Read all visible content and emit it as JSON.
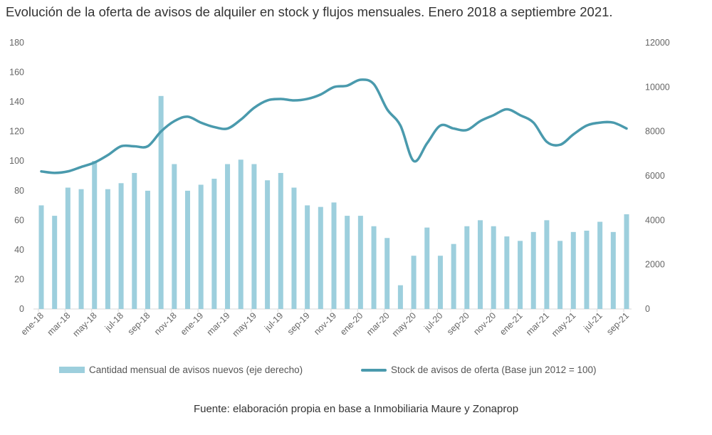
{
  "title": "Evolución de la oferta de avisos de alquiler en stock y flujos mensuales. Enero 2018 a septiembre 2021.",
  "source": "Fuente: elaboración propia en base a Inmobiliaria Maure y Zonaprop",
  "colors": {
    "bars": "#9dcfdd",
    "line": "#4a9aad"
  },
  "chart_data": {
    "type": "bar+line",
    "title": "Evolución de la oferta de avisos de alquiler en stock y flujos mensuales. Enero 2018 a septiembre 2021.",
    "x": [
      "ene-18",
      "feb-18",
      "mar-18",
      "abr-18",
      "may-18",
      "jun-18",
      "jul-18",
      "ago-18",
      "sep-18",
      "oct-18",
      "nov-18",
      "dic-18",
      "ene-19",
      "feb-19",
      "mar-19",
      "abr-19",
      "may-19",
      "jun-19",
      "jul-19",
      "ago-19",
      "sep-19",
      "oct-19",
      "nov-19",
      "dic-19",
      "ene-20",
      "feb-20",
      "mar-20",
      "abr-20",
      "may-20",
      "jun-20",
      "jul-20",
      "ago-20",
      "sep-20",
      "oct-20",
      "nov-20",
      "dic-20",
      "ene-21",
      "feb-21",
      "mar-21",
      "abr-21",
      "may-21",
      "jun-21",
      "jul-21",
      "ago-21",
      "sep-21"
    ],
    "x_tick_labels": [
      "ene-18",
      "mar-18",
      "may-18",
      "jul-18",
      "sep-18",
      "nov-18",
      "ene-19",
      "mar-19",
      "may-19",
      "jul-19",
      "sep-19",
      "nov-19",
      "ene-20",
      "mar-20",
      "may-20",
      "jul-20",
      "sep-20",
      "nov-20",
      "ene-21",
      "mar-21",
      "may-21",
      "jul-21",
      "sep-21"
    ],
    "left_axis": {
      "range": [
        0,
        180
      ],
      "ticks": [
        "0",
        "20",
        "40",
        "60",
        "80",
        "100",
        "120",
        "140",
        "160",
        "180"
      ]
    },
    "right_axis": {
      "range": [
        0,
        12000
      ],
      "ticks": [
        "0",
        "2000",
        "4000",
        "6000",
        "8000",
        "10000",
        "12000"
      ]
    },
    "series": [
      {
        "name": "Cantidad mensual de avisos nuevos (eje derecho)",
        "type": "bar",
        "axis": "right",
        "values": [
          4670,
          4200,
          5470,
          5400,
          6670,
          5400,
          5670,
          6130,
          5330,
          9600,
          6530,
          5330,
          5600,
          5870,
          6530,
          6730,
          6530,
          5800,
          6130,
          5470,
          4670,
          4600,
          4800,
          4200,
          4200,
          3730,
          3200,
          1070,
          2400,
          3670,
          2400,
          2930,
          3730,
          4000,
          3730,
          3270,
          3070,
          3470,
          4000,
          3070,
          3470,
          3530,
          3930,
          3470,
          4270
        ]
      },
      {
        "name": "Stock de avisos de oferta (Base jun 2012 = 100)",
        "type": "line",
        "axis": "left",
        "values": [
          93,
          92,
          93,
          96,
          99,
          104,
          110,
          110,
          110,
          120,
          127,
          130,
          126,
          123,
          122,
          128,
          136,
          141,
          142,
          141,
          142,
          145,
          150,
          151,
          155,
          152,
          135,
          124,
          100,
          112,
          124,
          122,
          121,
          127,
          131,
          135,
          131,
          126,
          113,
          111,
          118,
          124,
          126,
          126,
          122
        ]
      }
    ],
    "legend_position": "bottom",
    "grid": false
  }
}
